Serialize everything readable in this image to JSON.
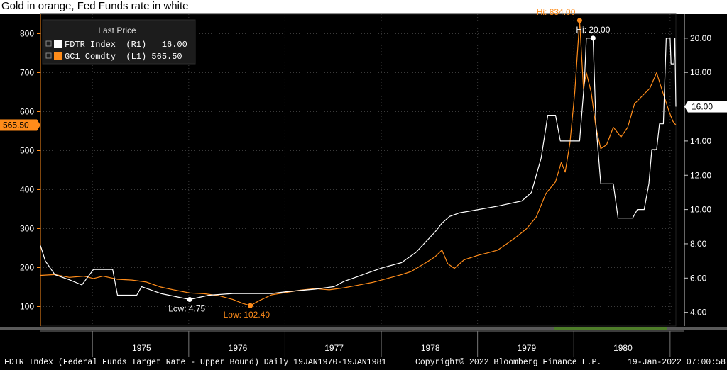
{
  "title": "Gold in orange, Fed Funds rate in white",
  "footer": {
    "left": "FDTR Index (Federal Funds Target Rate - Upper Bound)  Daily 19JAN1970-19JAN1981",
    "center": "Copyright© 2022 Bloomberg Finance L.P.",
    "right": "19-Jan-2022 07:00:58"
  },
  "colors": {
    "gold": "#ff8c1a",
    "fed": "#ffffff",
    "background": "#000000",
    "grid": "#3a3a3a"
  },
  "chart_data": {
    "type": "line",
    "legend": {
      "title": "Last Price",
      "placement": "top-left",
      "entries": [
        {
          "label": "FDTR Index  (R1)   16.00",
          "color": "#ffffff"
        },
        {
          "label": "GC1 Comdty  (L1) 565.50",
          "color": "#ff8c1a"
        }
      ]
    },
    "x_ticks": [
      "1975",
      "1976",
      "1977",
      "1978",
      "1979",
      "1980"
    ],
    "xlim": [
      1974.45,
      1981.05
    ],
    "left_axis": {
      "ticks": [
        "100",
        "200",
        "300",
        "400",
        "500",
        "600",
        "700",
        "800"
      ],
      "ylim": [
        50,
        850
      ],
      "last_value_label": "565.50"
    },
    "right_axis": {
      "ticks": [
        "4.00",
        "6.00",
        "8.00",
        "10.00",
        "12.00",
        "14.00",
        "16.00",
        "18.00",
        "20.00"
      ],
      "ylim": [
        3.2,
        21.4
      ],
      "last_value_label": "16.00"
    },
    "grid": true,
    "annotations": {
      "gold_high": {
        "label": "Hi: 834.00",
        "x": 1980.05,
        "y": 834
      },
      "gold_low": {
        "label": "Low: 102.40",
        "x": 1976.63,
        "y": 102.4
      },
      "fed_high": {
        "label": "Hi: 20.00",
        "x": 1980.19,
        "y": 20.0
      },
      "fed_low": {
        "label": "Low: 4.75",
        "x": 1976.0,
        "y": 4.75
      }
    },
    "series": [
      {
        "name": "GC1 Comdty",
        "axis": "left",
        "color": "#ff8c1a",
        "points": [
          [
            1974.45,
            180
          ],
          [
            1974.6,
            182
          ],
          [
            1974.75,
            175
          ],
          [
            1974.9,
            178
          ],
          [
            1975.0,
            172
          ],
          [
            1975.1,
            178
          ],
          [
            1975.25,
            170
          ],
          [
            1975.4,
            168
          ],
          [
            1975.55,
            163
          ],
          [
            1975.7,
            150
          ],
          [
            1975.85,
            142
          ],
          [
            1976.0,
            135
          ],
          [
            1976.15,
            133
          ],
          [
            1976.3,
            128
          ],
          [
            1976.45,
            118
          ],
          [
            1976.55,
            108
          ],
          [
            1976.63,
            102.4
          ],
          [
            1976.72,
            115
          ],
          [
            1976.85,
            130
          ],
          [
            1977.0,
            136
          ],
          [
            1977.15,
            142
          ],
          [
            1977.3,
            146
          ],
          [
            1977.45,
            143
          ],
          [
            1977.6,
            148
          ],
          [
            1977.75,
            155
          ],
          [
            1977.9,
            162
          ],
          [
            1978.05,
            172
          ],
          [
            1978.2,
            182
          ],
          [
            1978.3,
            190
          ],
          [
            1978.45,
            212
          ],
          [
            1978.55,
            228
          ],
          [
            1978.62,
            245
          ],
          [
            1978.68,
            210
          ],
          [
            1978.75,
            198
          ],
          [
            1978.85,
            220
          ],
          [
            1979.0,
            232
          ],
          [
            1979.1,
            238
          ],
          [
            1979.2,
            245
          ],
          [
            1979.3,
            262
          ],
          [
            1979.4,
            280
          ],
          [
            1979.5,
            300
          ],
          [
            1979.6,
            330
          ],
          [
            1979.7,
            390
          ],
          [
            1979.8,
            420
          ],
          [
            1979.86,
            470
          ],
          [
            1979.9,
            445
          ],
          [
            1979.95,
            520
          ],
          [
            1980.0,
            650
          ],
          [
            1980.05,
            834
          ],
          [
            1980.09,
            660
          ],
          [
            1980.12,
            700
          ],
          [
            1980.17,
            650
          ],
          [
            1980.22,
            560
          ],
          [
            1980.27,
            505
          ],
          [
            1980.33,
            515
          ],
          [
            1980.4,
            560
          ],
          [
            1980.48,
            535
          ],
          [
            1980.55,
            560
          ],
          [
            1980.62,
            620
          ],
          [
            1980.7,
            640
          ],
          [
            1980.78,
            660
          ],
          [
            1980.85,
            700
          ],
          [
            1980.9,
            660
          ],
          [
            1980.94,
            630
          ],
          [
            1980.98,
            600
          ],
          [
            1981.02,
            575
          ],
          [
            1981.05,
            565.5
          ]
        ]
      },
      {
        "name": "FDTR Index",
        "axis": "right",
        "color": "#ffffff",
        "points": [
          [
            1974.45,
            7.9
          ],
          [
            1974.5,
            7.0
          ],
          [
            1974.6,
            6.2
          ],
          [
            1974.75,
            5.9
          ],
          [
            1974.88,
            5.6
          ],
          [
            1975.0,
            6.5
          ],
          [
            1975.2,
            6.5
          ],
          [
            1975.25,
            5.0
          ],
          [
            1975.45,
            5.0
          ],
          [
            1975.5,
            5.5
          ],
          [
            1975.7,
            5.1
          ],
          [
            1976.0,
            4.75
          ],
          [
            1976.2,
            5.0
          ],
          [
            1976.45,
            5.1
          ],
          [
            1976.65,
            5.1
          ],
          [
            1976.85,
            5.1
          ],
          [
            1977.0,
            5.2
          ],
          [
            1977.3,
            5.35
          ],
          [
            1977.5,
            5.5
          ],
          [
            1977.6,
            5.8
          ],
          [
            1977.75,
            6.1
          ],
          [
            1977.9,
            6.4
          ],
          [
            1978.0,
            6.6
          ],
          [
            1978.2,
            6.9
          ],
          [
            1978.35,
            7.5
          ],
          [
            1978.45,
            8.1
          ],
          [
            1978.55,
            8.7
          ],
          [
            1978.62,
            9.2
          ],
          [
            1978.7,
            9.6
          ],
          [
            1978.8,
            9.8
          ],
          [
            1979.0,
            10.0
          ],
          [
            1979.2,
            10.2
          ],
          [
            1979.45,
            10.5
          ],
          [
            1979.55,
            11.0
          ],
          [
            1979.65,
            13.0
          ],
          [
            1979.72,
            15.5
          ],
          [
            1979.8,
            15.5
          ],
          [
            1979.85,
            14.0
          ],
          [
            1979.9,
            14.0
          ],
          [
            1980.0,
            14.0
          ],
          [
            1980.05,
            14.0
          ],
          [
            1980.1,
            17.5
          ],
          [
            1980.12,
            20.0
          ],
          [
            1980.19,
            20.0
          ],
          [
            1980.22,
            15.0
          ],
          [
            1980.27,
            11.5
          ],
          [
            1980.4,
            11.5
          ],
          [
            1980.45,
            9.5
          ],
          [
            1980.6,
            9.5
          ],
          [
            1980.65,
            10.0
          ],
          [
            1980.72,
            10.0
          ],
          [
            1980.77,
            11.5
          ],
          [
            1980.8,
            13.5
          ],
          [
            1980.85,
            13.5
          ],
          [
            1980.88,
            15.0
          ],
          [
            1980.92,
            15.0
          ],
          [
            1980.95,
            20.0
          ],
          [
            1980.99,
            20.0
          ],
          [
            1981.0,
            18.5
          ],
          [
            1981.03,
            18.5
          ],
          [
            1981.04,
            20.0
          ],
          [
            1981.05,
            16.0
          ]
        ]
      }
    ]
  }
}
